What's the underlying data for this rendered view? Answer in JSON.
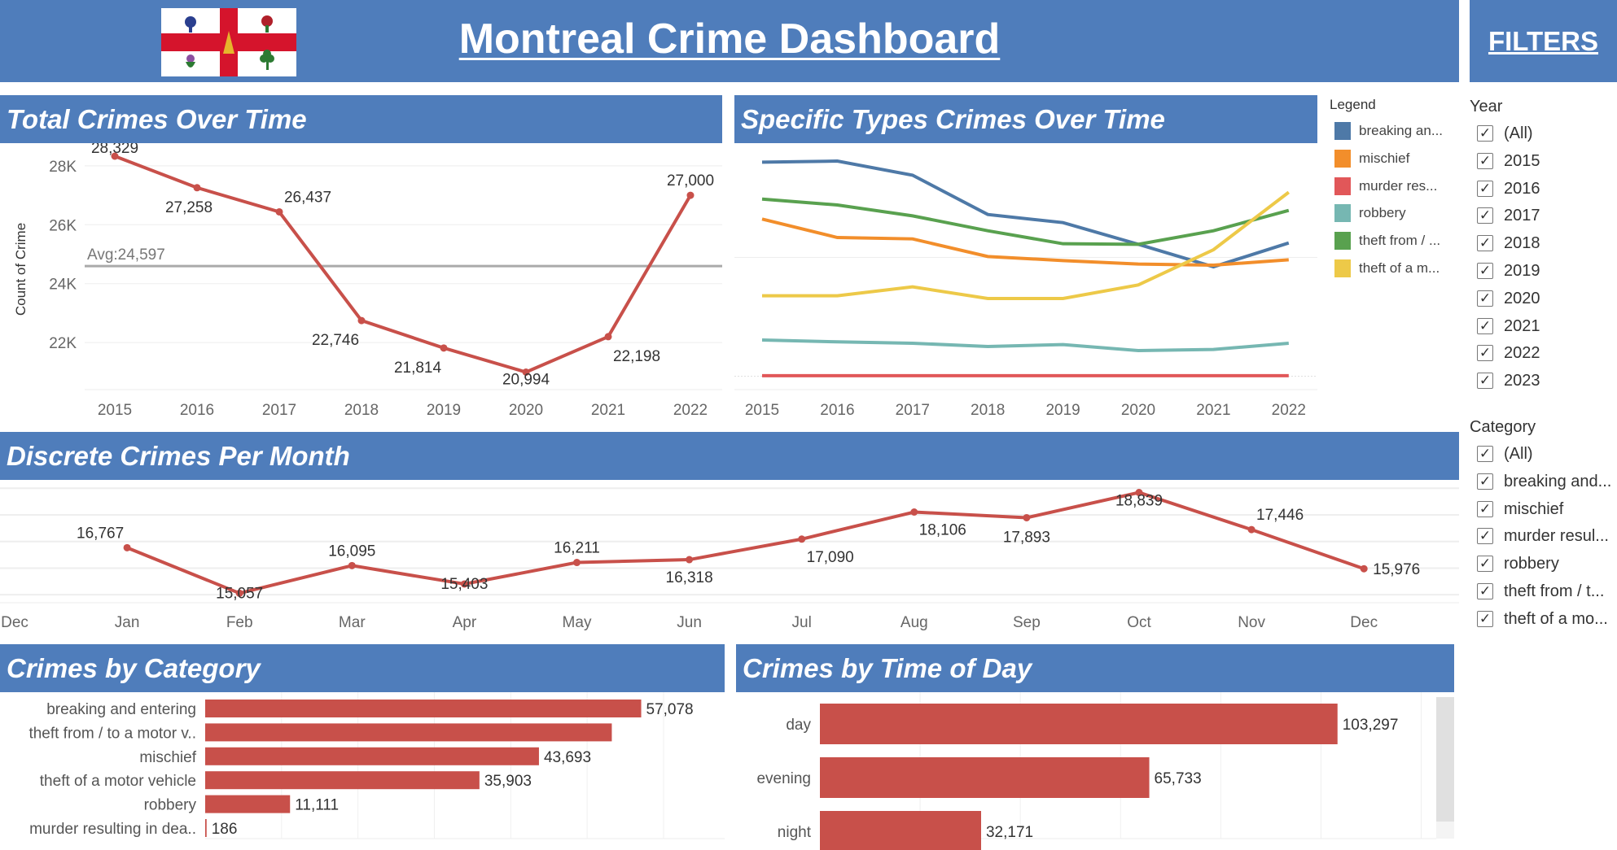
{
  "header": {
    "title": "Montreal Crime Dashboard",
    "logo": "montreal-flag",
    "filters_title": "FILTERS"
  },
  "colors": {
    "header": "#4f7dbb",
    "line": "#c8504a",
    "bar": "#c8504a"
  },
  "total_crimes": {
    "title": "Total Crimes Over Time",
    "chart_data": {
      "type": "line",
      "x": [
        "2015",
        "2016",
        "2017",
        "2018",
        "2019",
        "2020",
        "2021",
        "2022"
      ],
      "values": [
        28329,
        27258,
        26437,
        22746,
        21814,
        20994,
        22198,
        27000
      ],
      "labels": [
        "28,329",
        "27,258",
        "26,437",
        "22,746",
        "21,814",
        "20,994",
        "22,198",
        "27,000"
      ],
      "ylabel": "Count of Crime",
      "yticks": [
        "22K",
        "24K",
        "26K",
        "28K"
      ],
      "ytick_values": [
        22000,
        24000,
        26000,
        28000
      ],
      "ylim": [
        20400,
        28550
      ],
      "reference_line": {
        "label": "Avg:24,597",
        "value": 24597
      },
      "grid": true
    }
  },
  "specific_types": {
    "title": "Specific Types Crimes Over Time",
    "legend_title": "Legend",
    "chart_data": {
      "type": "line",
      "x": [
        "2015",
        "2016",
        "2017",
        "2018",
        "2019",
        "2020",
        "2021",
        "2022"
      ],
      "ylim": [
        -560,
        9430
      ],
      "legend": "right",
      "series": [
        {
          "name": "breaking an...",
          "color": "#4e79a7",
          "values": [
            9006,
            9052,
            8459,
            6806,
            6464,
            5552,
            4606,
            5609
          ]
        },
        {
          "name": "mischief",
          "color": "#f28e2b",
          "values": [
            6612,
            5837,
            5780,
            5039,
            4868,
            4720,
            4674,
            4902
          ]
        },
        {
          "name": "murder res...",
          "color": "#e15759",
          "values": [
            25,
            25,
            25,
            25,
            25,
            25,
            25,
            25
          ]
        },
        {
          "name": "robbery",
          "color": "#76b7b2",
          "values": [
            1528,
            1448,
            1391,
            1254,
            1334,
            1083,
            1129,
            1391
          ]
        },
        {
          "name": "theft from / ...",
          "color": "#59a14f",
          "values": [
            7456,
            7205,
            6749,
            6122,
            5575,
            5552,
            6122,
            6977
          ]
        },
        {
          "name": "theft of a m...",
          "color": "#edc948",
          "values": [
            3386,
            3386,
            3762,
            3272,
            3272,
            3842,
            5324,
            7741
          ]
        }
      ]
    }
  },
  "per_month": {
    "title": "Discrete Crimes Per Month",
    "chart_data": {
      "type": "line",
      "axis_labels": [
        "Dec",
        "Jan",
        "Feb",
        "Mar",
        "Apr",
        "May",
        "Jun",
        "Jul",
        "Aug",
        "Sep",
        "Oct",
        "Nov",
        "Dec",
        "Jan"
      ],
      "x": [
        "Jan",
        "Feb",
        "Mar",
        "Apr",
        "May",
        "Jun",
        "Jul",
        "Aug",
        "Sep",
        "Oct",
        "Nov",
        "Dec"
      ],
      "values": [
        16767,
        15057,
        16095,
        15403,
        16211,
        16318,
        17090,
        18106,
        17893,
        18839,
        17446,
        15976
      ],
      "labels": [
        "16,767",
        "15,057",
        "16,095",
        "15,403",
        "16,211",
        "16,318",
        "17,090",
        "18,106",
        "17,893",
        "18,839",
        "17,446",
        "15,976"
      ],
      "ylim": [
        14700,
        19160
      ],
      "grid": true
    }
  },
  "by_category": {
    "title": "Crimes by Category",
    "chart_data": {
      "type": "bar",
      "orientation": "horizontal",
      "categories": [
        "breaking and entering",
        "theft from / to a motor v..",
        "mischief",
        "theft of a motor vehicle",
        "robbery",
        "murder resulting in dea.."
      ],
      "values": [
        57078,
        53230,
        43693,
        35903,
        11111,
        186
      ],
      "labels": [
        "57,078",
        "",
        "43,693",
        "35,903",
        "11,111",
        "186"
      ],
      "xlim": [
        0,
        68000
      ]
    }
  },
  "by_time": {
    "title": "Crimes by Time of Day",
    "chart_data": {
      "type": "bar",
      "orientation": "horizontal",
      "categories": [
        "day",
        "evening",
        "night"
      ],
      "values": [
        103297,
        65733,
        32171
      ],
      "labels": [
        "103,297",
        "65,733",
        "32,171"
      ],
      "xlim": [
        0,
        123000
      ]
    }
  },
  "filters": {
    "year": {
      "label": "Year",
      "options": [
        "(All)",
        "2015",
        "2016",
        "2017",
        "2018",
        "2019",
        "2020",
        "2021",
        "2022",
        "2023"
      ],
      "checked": true
    },
    "category": {
      "label": "Category",
      "options": [
        "(All)",
        "breaking and...",
        "mischief",
        "murder resul...",
        "robbery",
        "theft from / t...",
        "theft of a mo..."
      ],
      "checked": true
    },
    "check_glyph": "✓"
  }
}
